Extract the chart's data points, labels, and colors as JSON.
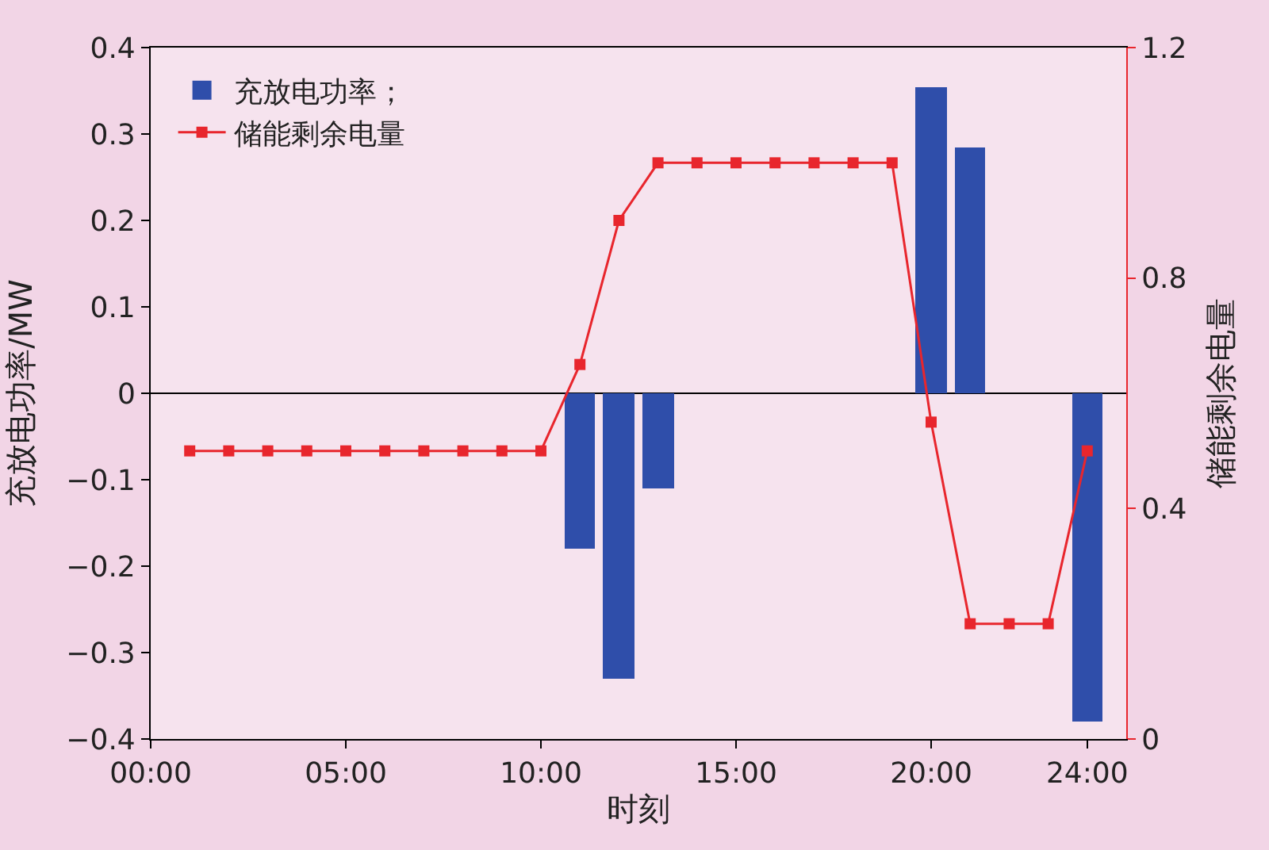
{
  "chart_data": {
    "type": "bar",
    "xlabel": "时刻",
    "ylabel": "充放电功率/MW",
    "y2label": "储能剩余电量",
    "xlim": [
      0,
      25
    ],
    "xticks": [
      {
        "value": 0,
        "label": "00:00"
      },
      {
        "value": 5,
        "label": "05:00"
      },
      {
        "value": 10,
        "label": "10:00"
      },
      {
        "value": 15,
        "label": "15:00"
      },
      {
        "value": 20,
        "label": "20:00"
      },
      {
        "value": 24,
        "label": "24:00"
      }
    ],
    "ylim": [
      -0.4,
      0.4
    ],
    "yticks": [
      -0.4,
      -0.3,
      -0.2,
      -0.1,
      0,
      0.1,
      0.2,
      0.3,
      0.4
    ],
    "y2lim": [
      0,
      1.2
    ],
    "y2ticks": [
      0,
      0.4,
      0.8,
      1.2
    ],
    "series": [
      {
        "name": "充放电功率；",
        "color": "#2f4eaa",
        "x": [
          11,
          12,
          13,
          20,
          21,
          24
        ],
        "values": [
          -0.18,
          -0.33,
          -0.11,
          0.355,
          0.285,
          -0.38
        ]
      },
      {
        "name": "储能剩余电量",
        "type": "line",
        "axis": "y2",
        "color": "#e8262d",
        "marker": "square",
        "x": [
          1,
          2,
          3,
          4,
          5,
          6,
          7,
          8,
          9,
          10,
          11,
          12,
          13,
          14,
          15,
          16,
          17,
          18,
          19,
          20,
          21,
          22,
          23,
          24
        ],
        "values": [
          0.5,
          0.5,
          0.5,
          0.5,
          0.5,
          0.5,
          0.5,
          0.5,
          0.5,
          0.5,
          0.65,
          0.9,
          1.0,
          1.0,
          1.0,
          1.0,
          1.0,
          1.0,
          1.0,
          0.55,
          0.2,
          0.2,
          0.2,
          0.5
        ]
      }
    ],
    "ref_lines": [
      {
        "axis": "y",
        "value": 0,
        "color": "#000000"
      }
    ],
    "grid": false,
    "legend": "top left"
  }
}
